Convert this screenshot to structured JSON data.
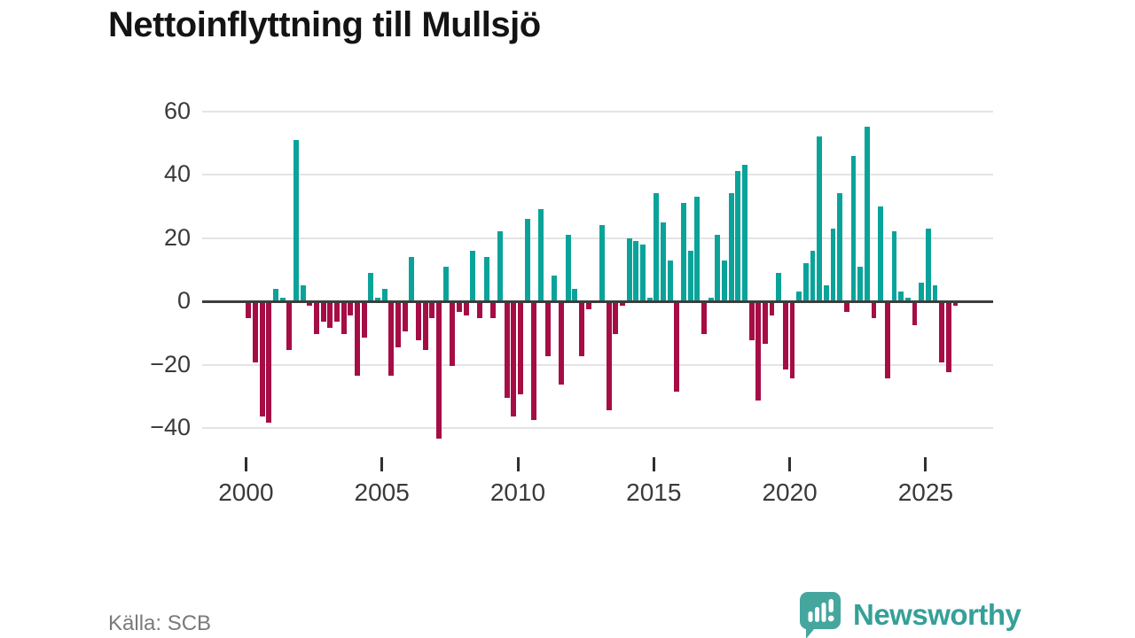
{
  "title": "Nettoinflyttning till Mullsjö",
  "source_label": "Källa: SCB",
  "brand": {
    "name": "Newsworthy",
    "logo_color": "#45a69e",
    "text_color": "#35a098"
  },
  "chart_data": {
    "type": "bar",
    "title": "Nettoinflyttning till Mullsjö",
    "frequency": "quarterly",
    "x_start_year": 2000,
    "values": [
      -5,
      -19,
      -36,
      -38,
      4,
      1,
      -15,
      51,
      5,
      -1,
      -10,
      -6,
      -8,
      -6,
      -10,
      -4,
      -23,
      -11,
      9,
      1,
      4,
      -23,
      -14,
      -9,
      14,
      -12,
      -15,
      -5,
      -43,
      11,
      -20,
      -3,
      -4,
      16,
      -5,
      14,
      -5,
      22,
      -30,
      -36,
      -29,
      26,
      -37,
      29,
      -17,
      8,
      -26,
      21,
      4,
      -17,
      -2,
      0,
      24,
      -34,
      -10,
      -1,
      20,
      19,
      18,
      1,
      34,
      25,
      13,
      -28,
      31,
      16,
      33,
      -10,
      1,
      21,
      13,
      34,
      41,
      43,
      -12,
      -31,
      -13,
      -4,
      9,
      -21,
      -24,
      3,
      12,
      16,
      52,
      5,
      23,
      34,
      -3,
      46,
      11,
      55,
      -5,
      30,
      -24,
      22,
      3,
      1,
      -7,
      6,
      23,
      5,
      -19,
      -22,
      -1
    ],
    "yticks": [
      60,
      40,
      20,
      0,
      -20,
      -40
    ],
    "xticks": [
      2000,
      2005,
      2010,
      2015,
      2020,
      2025
    ],
    "ylim": [
      -50,
      65
    ],
    "grid": true,
    "legend": false,
    "positive_color": "#0aa39a",
    "negative_color": "#a60d45",
    "xlabel": "",
    "ylabel": ""
  }
}
